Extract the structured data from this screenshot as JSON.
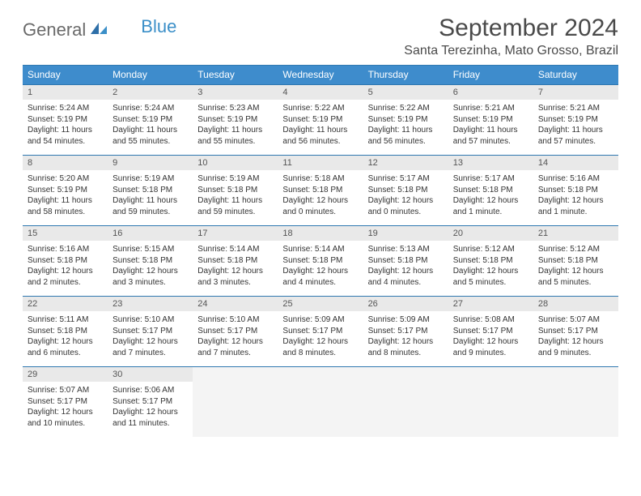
{
  "brand": {
    "first": "General",
    "second": "Blue"
  },
  "title": "September 2024",
  "location": "Santa Terezinha, Mato Grosso, Brazil",
  "colors": {
    "header_bg": "#3e8ccc",
    "header_text": "#ffffff",
    "daynum_bg": "#e9e9e9",
    "border": "#2f78b0",
    "brand_gray": "#6a6a6a",
    "brand_blue": "#3b8fc8"
  },
  "weekdays": [
    "Sunday",
    "Monday",
    "Tuesday",
    "Wednesday",
    "Thursday",
    "Friday",
    "Saturday"
  ],
  "weeks": [
    {
      "nums": [
        "1",
        "2",
        "3",
        "4",
        "5",
        "6",
        "7"
      ],
      "cells": [
        {
          "sunrise": "Sunrise: 5:24 AM",
          "sunset": "Sunset: 5:19 PM",
          "day1": "Daylight: 11 hours",
          "day2": "and 54 minutes."
        },
        {
          "sunrise": "Sunrise: 5:24 AM",
          "sunset": "Sunset: 5:19 PM",
          "day1": "Daylight: 11 hours",
          "day2": "and 55 minutes."
        },
        {
          "sunrise": "Sunrise: 5:23 AM",
          "sunset": "Sunset: 5:19 PM",
          "day1": "Daylight: 11 hours",
          "day2": "and 55 minutes."
        },
        {
          "sunrise": "Sunrise: 5:22 AM",
          "sunset": "Sunset: 5:19 PM",
          "day1": "Daylight: 11 hours",
          "day2": "and 56 minutes."
        },
        {
          "sunrise": "Sunrise: 5:22 AM",
          "sunset": "Sunset: 5:19 PM",
          "day1": "Daylight: 11 hours",
          "day2": "and 56 minutes."
        },
        {
          "sunrise": "Sunrise: 5:21 AM",
          "sunset": "Sunset: 5:19 PM",
          "day1": "Daylight: 11 hours",
          "day2": "and 57 minutes."
        },
        {
          "sunrise": "Sunrise: 5:21 AM",
          "sunset": "Sunset: 5:19 PM",
          "day1": "Daylight: 11 hours",
          "day2": "and 57 minutes."
        }
      ]
    },
    {
      "nums": [
        "8",
        "9",
        "10",
        "11",
        "12",
        "13",
        "14"
      ],
      "cells": [
        {
          "sunrise": "Sunrise: 5:20 AM",
          "sunset": "Sunset: 5:19 PM",
          "day1": "Daylight: 11 hours",
          "day2": "and 58 minutes."
        },
        {
          "sunrise": "Sunrise: 5:19 AM",
          "sunset": "Sunset: 5:18 PM",
          "day1": "Daylight: 11 hours",
          "day2": "and 59 minutes."
        },
        {
          "sunrise": "Sunrise: 5:19 AM",
          "sunset": "Sunset: 5:18 PM",
          "day1": "Daylight: 11 hours",
          "day2": "and 59 minutes."
        },
        {
          "sunrise": "Sunrise: 5:18 AM",
          "sunset": "Sunset: 5:18 PM",
          "day1": "Daylight: 12 hours",
          "day2": "and 0 minutes."
        },
        {
          "sunrise": "Sunrise: 5:17 AM",
          "sunset": "Sunset: 5:18 PM",
          "day1": "Daylight: 12 hours",
          "day2": "and 0 minutes."
        },
        {
          "sunrise": "Sunrise: 5:17 AM",
          "sunset": "Sunset: 5:18 PM",
          "day1": "Daylight: 12 hours",
          "day2": "and 1 minute."
        },
        {
          "sunrise": "Sunrise: 5:16 AM",
          "sunset": "Sunset: 5:18 PM",
          "day1": "Daylight: 12 hours",
          "day2": "and 1 minute."
        }
      ]
    },
    {
      "nums": [
        "15",
        "16",
        "17",
        "18",
        "19",
        "20",
        "21"
      ],
      "cells": [
        {
          "sunrise": "Sunrise: 5:16 AM",
          "sunset": "Sunset: 5:18 PM",
          "day1": "Daylight: 12 hours",
          "day2": "and 2 minutes."
        },
        {
          "sunrise": "Sunrise: 5:15 AM",
          "sunset": "Sunset: 5:18 PM",
          "day1": "Daylight: 12 hours",
          "day2": "and 3 minutes."
        },
        {
          "sunrise": "Sunrise: 5:14 AM",
          "sunset": "Sunset: 5:18 PM",
          "day1": "Daylight: 12 hours",
          "day2": "and 3 minutes."
        },
        {
          "sunrise": "Sunrise: 5:14 AM",
          "sunset": "Sunset: 5:18 PM",
          "day1": "Daylight: 12 hours",
          "day2": "and 4 minutes."
        },
        {
          "sunrise": "Sunrise: 5:13 AM",
          "sunset": "Sunset: 5:18 PM",
          "day1": "Daylight: 12 hours",
          "day2": "and 4 minutes."
        },
        {
          "sunrise": "Sunrise: 5:12 AM",
          "sunset": "Sunset: 5:18 PM",
          "day1": "Daylight: 12 hours",
          "day2": "and 5 minutes."
        },
        {
          "sunrise": "Sunrise: 5:12 AM",
          "sunset": "Sunset: 5:18 PM",
          "day1": "Daylight: 12 hours",
          "day2": "and 5 minutes."
        }
      ]
    },
    {
      "nums": [
        "22",
        "23",
        "24",
        "25",
        "26",
        "27",
        "28"
      ],
      "cells": [
        {
          "sunrise": "Sunrise: 5:11 AM",
          "sunset": "Sunset: 5:18 PM",
          "day1": "Daylight: 12 hours",
          "day2": "and 6 minutes."
        },
        {
          "sunrise": "Sunrise: 5:10 AM",
          "sunset": "Sunset: 5:17 PM",
          "day1": "Daylight: 12 hours",
          "day2": "and 7 minutes."
        },
        {
          "sunrise": "Sunrise: 5:10 AM",
          "sunset": "Sunset: 5:17 PM",
          "day1": "Daylight: 12 hours",
          "day2": "and 7 minutes."
        },
        {
          "sunrise": "Sunrise: 5:09 AM",
          "sunset": "Sunset: 5:17 PM",
          "day1": "Daylight: 12 hours",
          "day2": "and 8 minutes."
        },
        {
          "sunrise": "Sunrise: 5:09 AM",
          "sunset": "Sunset: 5:17 PM",
          "day1": "Daylight: 12 hours",
          "day2": "and 8 minutes."
        },
        {
          "sunrise": "Sunrise: 5:08 AM",
          "sunset": "Sunset: 5:17 PM",
          "day1": "Daylight: 12 hours",
          "day2": "and 9 minutes."
        },
        {
          "sunrise": "Sunrise: 5:07 AM",
          "sunset": "Sunset: 5:17 PM",
          "day1": "Daylight: 12 hours",
          "day2": "and 9 minutes."
        }
      ]
    },
    {
      "nums": [
        "29",
        "30",
        "",
        "",
        "",
        "",
        ""
      ],
      "cells": [
        {
          "sunrise": "Sunrise: 5:07 AM",
          "sunset": "Sunset: 5:17 PM",
          "day1": "Daylight: 12 hours",
          "day2": "and 10 minutes."
        },
        {
          "sunrise": "Sunrise: 5:06 AM",
          "sunset": "Sunset: 5:17 PM",
          "day1": "Daylight: 12 hours",
          "day2": "and 11 minutes."
        },
        null,
        null,
        null,
        null,
        null
      ]
    }
  ]
}
